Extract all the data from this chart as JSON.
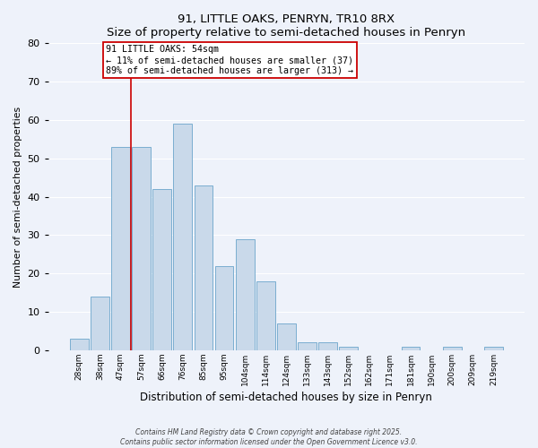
{
  "title": "91, LITTLE OAKS, PENRYN, TR10 8RX",
  "subtitle": "Size of property relative to semi-detached houses in Penryn",
  "xlabel": "Distribution of semi-detached houses by size in Penryn",
  "ylabel": "Number of semi-detached properties",
  "bar_labels": [
    "28sqm",
    "38sqm",
    "47sqm",
    "57sqm",
    "66sqm",
    "76sqm",
    "85sqm",
    "95sqm",
    "104sqm",
    "114sqm",
    "124sqm",
    "133sqm",
    "143sqm",
    "152sqm",
    "162sqm",
    "171sqm",
    "181sqm",
    "190sqm",
    "200sqm",
    "209sqm",
    "219sqm"
  ],
  "bar_values": [
    3,
    14,
    53,
    53,
    42,
    59,
    43,
    22,
    29,
    18,
    7,
    2,
    2,
    1,
    0,
    0,
    1,
    0,
    1,
    0,
    1
  ],
  "bar_color": "#c9d9ea",
  "bar_edge_color": "#7aaed0",
  "property_size": "54sqm",
  "pct_smaller": 11,
  "count_smaller": 37,
  "pct_larger": 89,
  "count_larger": 313,
  "line_color": "#cc0000",
  "line_x_index": 2.5,
  "ylim": [
    0,
    80
  ],
  "yticks": [
    0,
    10,
    20,
    30,
    40,
    50,
    60,
    70,
    80
  ],
  "background_color": "#eef2fa",
  "grid_color": "#ffffff",
  "footer_line1": "Contains HM Land Registry data © Crown copyright and database right 2025.",
  "footer_line2": "Contains public sector information licensed under the Open Government Licence v3.0."
}
